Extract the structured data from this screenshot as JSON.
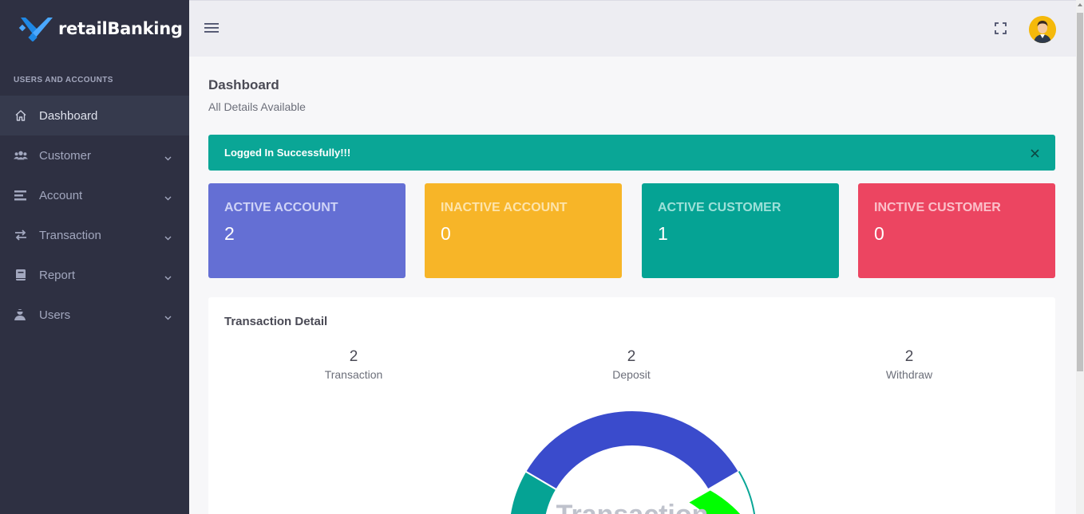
{
  "brand": {
    "name": "retailBanking"
  },
  "sidebar": {
    "section_label": "USERS AND ACCOUNTS",
    "items": [
      {
        "label": "Dashboard",
        "icon": "home-icon",
        "active": true,
        "has_submenu": false
      },
      {
        "label": "Customer",
        "icon": "users-icon",
        "active": false,
        "has_submenu": true
      },
      {
        "label": "Account",
        "icon": "list-icon",
        "active": false,
        "has_submenu": true
      },
      {
        "label": "Transaction",
        "icon": "exchange-icon",
        "active": false,
        "has_submenu": true
      },
      {
        "label": "Report",
        "icon": "book-icon",
        "active": false,
        "has_submenu": true
      },
      {
        "label": "Users",
        "icon": "user-shield-icon",
        "active": false,
        "has_submenu": true
      }
    ]
  },
  "header": {
    "menu_icon": "hamburger-icon",
    "fullscreen_icon": "fullscreen-icon",
    "avatar_icon": "user-avatar-icon"
  },
  "page": {
    "title": "Dashboard",
    "subtitle": "All Details Available"
  },
  "alert": {
    "message": "Logged In Successfully!!!",
    "close_icon": "close-icon",
    "color": "#0aa696"
  },
  "stats": [
    {
      "label": "ACTIVE ACCOUNT",
      "value": "2",
      "bg": "#646fd4",
      "label_color": "#cfd3f6"
    },
    {
      "label": "INACTIVE ACCOUNT",
      "value": "0",
      "bg": "#f7b528",
      "label_color": "#fde4ac"
    },
    {
      "label": "ACTIVE CUSTOMER",
      "value": "1",
      "bg": "#05a394",
      "label_color": "#9de0d8"
    },
    {
      "label": "INCTIVE CUSTOMER",
      "value": "0",
      "bg": "#ec4561",
      "label_color": "#fbc0ca"
    }
  ],
  "transaction_panel": {
    "title": "Transaction Detail",
    "metrics": [
      {
        "value": "2",
        "label": "Transaction"
      },
      {
        "value": "2",
        "label": "Deposit"
      },
      {
        "value": "2",
        "label": "Withdraw"
      }
    ],
    "donut_center_text": "Transaction",
    "donut_colors": {
      "main": "#3a4bcc",
      "left": "#05a394",
      "right": "#00ff00"
    }
  }
}
